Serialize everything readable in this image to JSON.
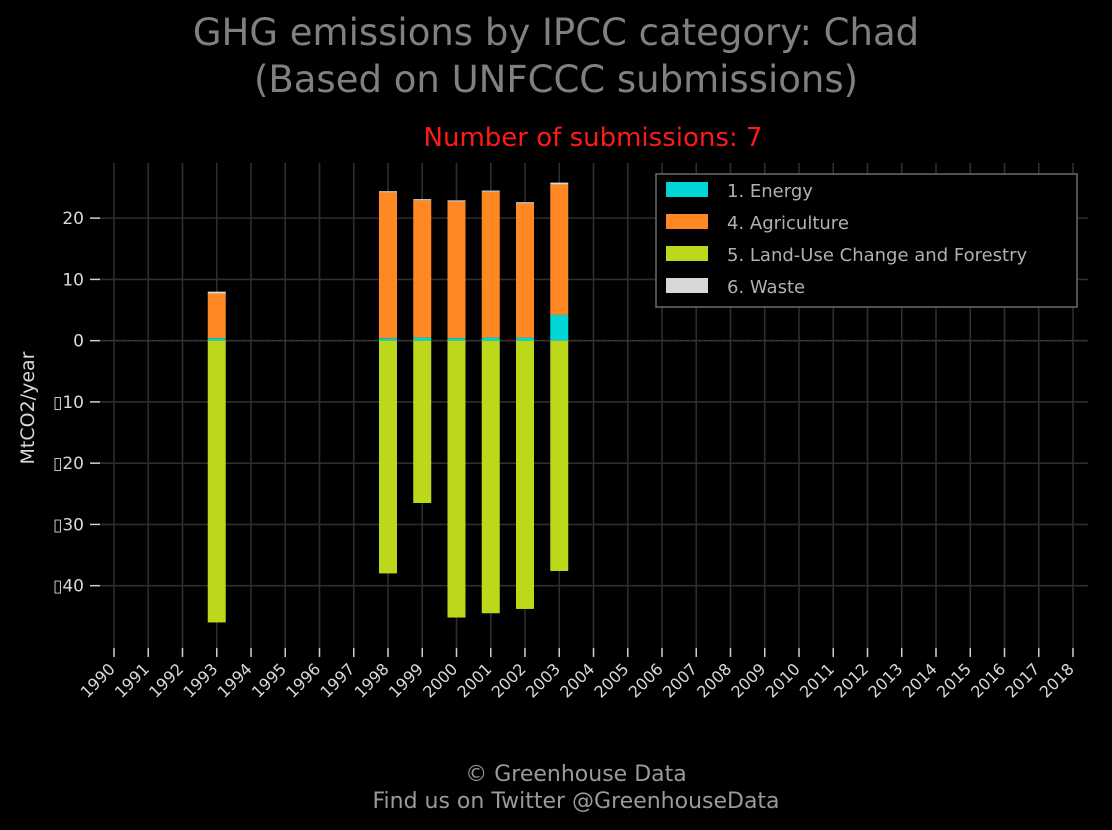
{
  "header": {
    "title_line1": "GHG emissions by IPCC category: Chad",
    "title_line2": "(Based on UNFCCC submissions)",
    "subtitle": "Number of submissions: 7"
  },
  "footer": {
    "line1": "© Greenhouse Data",
    "line2": "Find us on Twitter @GreenhouseData"
  },
  "colors": {
    "background": "#000000",
    "grid": "#2e2e2e",
    "text": "#d8d8d8",
    "title": "#808080",
    "subtitle": "#ff1a1a",
    "energy": "#00d6d6",
    "agriculture": "#ff8822",
    "lulucf": "#bdd81a",
    "waste": "#d8d8d8"
  },
  "chart_data": {
    "type": "bar",
    "stacked": true,
    "ylabel": "MtCO2/year",
    "ylim": [
      -50.5,
      29
    ],
    "yticks": [
      20,
      10,
      0,
      -10,
      -20,
      -30,
      -40
    ],
    "ytick_labels": [
      "20",
      "10",
      "0",
      "▯10",
      "▯20",
      "▯30",
      "▯40"
    ],
    "categories": [
      "1990",
      "1991",
      "1992",
      "1993",
      "1994",
      "1995",
      "1996",
      "1997",
      "1998",
      "1999",
      "2000",
      "2001",
      "2002",
      "2003",
      "2004",
      "2005",
      "2006",
      "2007",
      "2008",
      "2009",
      "2010",
      "2011",
      "2012",
      "2013",
      "2014",
      "2015",
      "2016",
      "2017",
      "2018"
    ],
    "grid": true,
    "legend_position": "top-right",
    "series": [
      {
        "name": "1. Energy",
        "color": "#00d6d6",
        "values": [
          null,
          null,
          null,
          0.4,
          null,
          null,
          null,
          null,
          0.4,
          0.5,
          0.4,
          0.5,
          0.5,
          4.2,
          null,
          null,
          null,
          null,
          null,
          null,
          null,
          null,
          null,
          null,
          null,
          null,
          null,
          null,
          null
        ]
      },
      {
        "name": "4. Agriculture",
        "color": "#ff8822",
        "values": [
          null,
          null,
          null,
          7.3,
          null,
          null,
          null,
          null,
          23.8,
          22.4,
          22.3,
          23.8,
          21.9,
          21.3,
          null,
          null,
          null,
          null,
          null,
          null,
          null,
          null,
          null,
          null,
          null,
          null,
          null,
          null,
          null
        ]
      },
      {
        "name": "5. Land-Use Change and Forestry",
        "color": "#bdd81a",
        "values": [
          null,
          null,
          null,
          -46.0,
          null,
          null,
          null,
          null,
          -38.0,
          -26.5,
          -45.2,
          -44.5,
          -43.8,
          -37.6,
          null,
          null,
          null,
          null,
          null,
          null,
          null,
          null,
          null,
          null,
          null,
          null,
          null,
          null,
          null
        ]
      },
      {
        "name": "6. Waste",
        "color": "#d8d8d8",
        "values": [
          null,
          null,
          null,
          0.3,
          null,
          null,
          null,
          null,
          0.2,
          0.2,
          0.2,
          0.2,
          0.2,
          0.3,
          null,
          null,
          null,
          null,
          null,
          null,
          null,
          null,
          null,
          null,
          null,
          null,
          null,
          null,
          null
        ]
      }
    ]
  }
}
